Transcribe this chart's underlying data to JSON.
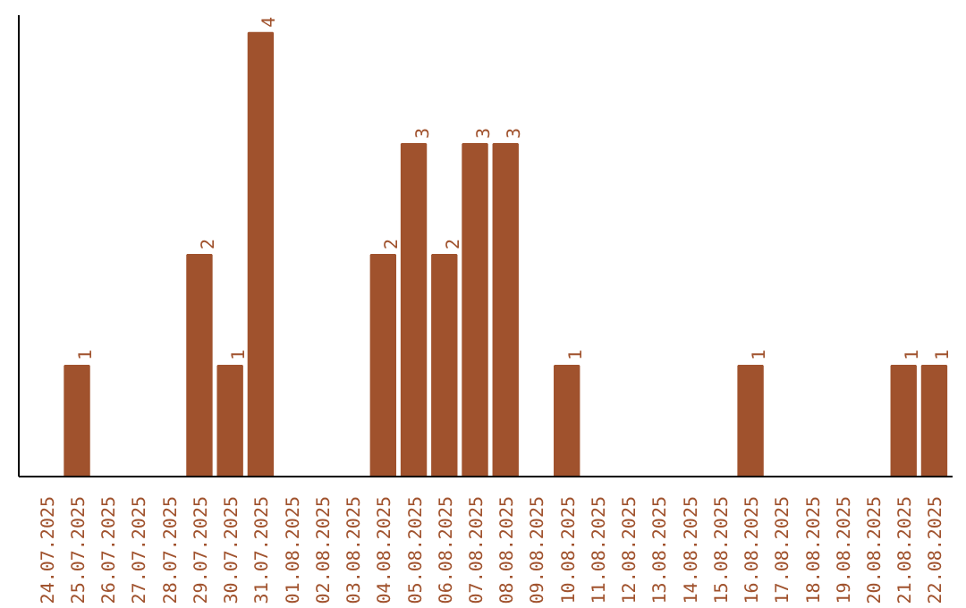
{
  "chart_data": {
    "type": "bar",
    "categories": [
      "24.07.2025",
      "25.07.2025",
      "26.07.2025",
      "27.07.2025",
      "28.07.2025",
      "29.07.2025",
      "30.07.2025",
      "31.07.2025",
      "01.08.2025",
      "02.08.2025",
      "03.08.2025",
      "04.08.2025",
      "05.08.2025",
      "06.08.2025",
      "07.08.2025",
      "08.08.2025",
      "09.08.2025",
      "10.08.2025",
      "11.08.2025",
      "12.08.2025",
      "13.08.2025",
      "14.08.2025",
      "15.08.2025",
      "16.08.2025",
      "17.08.2025",
      "18.08.2025",
      "19.08.2025",
      "20.08.2025",
      "21.08.2025",
      "22.08.2025"
    ],
    "values": [
      0,
      1,
      0,
      0,
      0,
      2,
      1,
      4,
      0,
      0,
      0,
      2,
      3,
      2,
      3,
      3,
      0,
      1,
      0,
      0,
      0,
      0,
      0,
      1,
      0,
      0,
      0,
      0,
      1,
      1
    ],
    "value_labels": [
      null,
      "1",
      null,
      null,
      null,
      "2",
      "1",
      "4",
      null,
      null,
      null,
      "2",
      "3",
      "2",
      "3",
      "3",
      null,
      "1",
      null,
      null,
      null,
      null,
      null,
      "1",
      null,
      null,
      null,
      null,
      "1",
      "1"
    ],
    "color": "#a0522d",
    "grid": false,
    "tick_labels": "x"
  }
}
